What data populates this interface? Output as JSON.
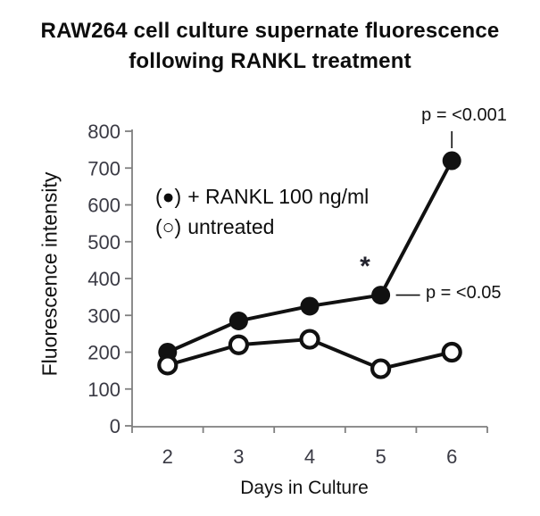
{
  "title": {
    "line1": "RAW264 cell culture supernate fluorescence",
    "line2": "following RANKL treatment"
  },
  "legend": {
    "items": [
      {
        "marker": "(●)",
        "label": "+ RANKL 100 ng/ml"
      },
      {
        "marker": "(○)",
        "label": "untreated"
      }
    ]
  },
  "annotations": {
    "p_day6": "p = <0.001",
    "p_day5": "p = <0.05",
    "significance_star": "*"
  },
  "chart_data": {
    "type": "line",
    "x": [
      2,
      3,
      4,
      5,
      6
    ],
    "xlabel": "Days in Culture",
    "ylabel": "Fluorescence intensity",
    "ylim": [
      0,
      800
    ],
    "ytick_step": 100,
    "grid": false,
    "legend_position": "inside-top-left",
    "series": [
      {
        "name": "+ RANKL 100 ng/ml",
        "marker": "filled-circle",
        "values": [
          200,
          285,
          325,
          355,
          720
        ]
      },
      {
        "name": "untreated",
        "marker": "open-circle",
        "values": [
          165,
          220,
          235,
          155,
          200
        ]
      }
    ],
    "annotations": [
      {
        "target_series": "+ RANKL 100 ng/ml",
        "target_x": 6,
        "text": "p = <0.001"
      },
      {
        "target_series": "+ RANKL 100 ng/ml",
        "target_x": 5,
        "text": "p = <0.05"
      },
      {
        "target_series": "+ RANKL 100 ng/ml",
        "target_x": 5,
        "text": "*"
      }
    ],
    "colors": {
      "series": "#111111",
      "axis": "#7f7f7f",
      "tick_labels": "#3a3a44"
    }
  }
}
